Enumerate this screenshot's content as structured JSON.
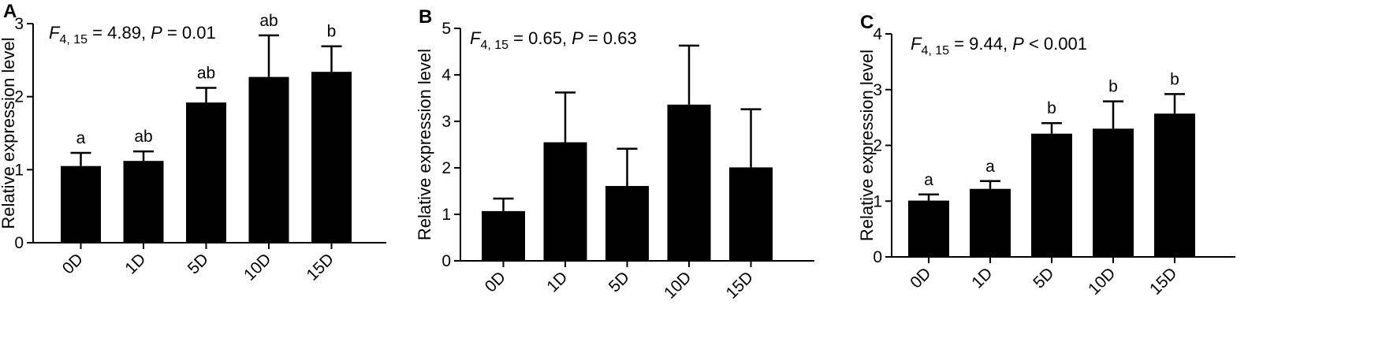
{
  "chart_data": [
    {
      "panel": "A",
      "type": "bar",
      "stat_parts": [
        "F",
        "4, 15",
        " = 4.89, ",
        "P",
        " = 0.01"
      ],
      "ylabel": "Relative expression level",
      "xlabel": "",
      "ylim": [
        0,
        3
      ],
      "yticks": [
        0,
        1,
        2,
        3
      ],
      "categories": [
        "0D",
        "1D",
        "5D",
        "10D",
        "15D"
      ],
      "values": [
        1.05,
        1.12,
        1.92,
        2.27,
        2.34
      ],
      "errors": [
        0.18,
        0.13,
        0.2,
        0.57,
        0.35
      ],
      "letters": [
        "a",
        "ab",
        "ab",
        "ab",
        "b"
      ],
      "color": "#000000"
    },
    {
      "panel": "B",
      "type": "bar",
      "stat_parts": [
        "F",
        "4, 15",
        " = 0.65, ",
        "P",
        " = 0.63"
      ],
      "ylabel": "Relative expression level",
      "xlabel": "",
      "ylim": [
        0,
        5
      ],
      "yticks": [
        0,
        1,
        2,
        3,
        4,
        5
      ],
      "categories": [
        "0D",
        "1D",
        "5D",
        "10D",
        "15D"
      ],
      "values": [
        1.07,
        2.55,
        1.61,
        3.36,
        2.01
      ],
      "errors": [
        0.27,
        1.07,
        0.8,
        1.27,
        1.25
      ],
      "letters": [
        "",
        "",
        "",
        "",
        ""
      ],
      "color": "#000000"
    },
    {
      "panel": "C",
      "type": "bar",
      "stat_parts": [
        "F",
        "4, 15",
        " = 9.44, ",
        "P",
        " < 0.001"
      ],
      "ylabel": "Relative expression level",
      "xlabel": "",
      "ylim": [
        0,
        4
      ],
      "yticks": [
        0,
        1,
        2,
        3,
        4
      ],
      "categories": [
        "0D",
        "1D",
        "5D",
        "10D",
        "15D"
      ],
      "values": [
        1.01,
        1.22,
        2.21,
        2.3,
        2.57
      ],
      "errors": [
        0.11,
        0.14,
        0.19,
        0.49,
        0.35
      ],
      "letters": [
        "a",
        "a",
        "b",
        "b",
        "b"
      ],
      "color": "#000000"
    }
  ]
}
